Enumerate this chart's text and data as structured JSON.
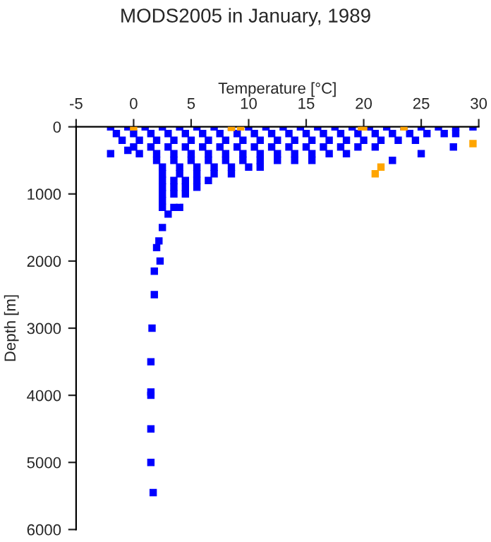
{
  "chart_data": {
    "type": "scatter",
    "title": "MODS2005 in January, 1989",
    "xlabel": "Temperature [°C]",
    "ylabel": "Depth [m]",
    "xlim": [
      -5,
      30
    ],
    "xticks": [
      -5,
      0,
      5,
      10,
      15,
      20,
      25,
      30
    ],
    "ylim": [
      6000,
      0
    ],
    "yticks": [
      0,
      1000,
      2000,
      3000,
      4000,
      5000,
      6000
    ],
    "grid": false,
    "legend": false,
    "marker": "square",
    "series": [
      {
        "color": "#0000ff",
        "x": [
          -2,
          -0.5,
          1,
          2.5,
          4,
          5.5,
          7,
          8.5,
          10,
          11.5,
          13,
          14.5,
          16,
          17.5,
          19,
          20.5,
          22,
          23.5,
          25,
          26.5,
          28,
          29.5,
          -1.5,
          0,
          1.5,
          3,
          4.5,
          6,
          7.5,
          9,
          10.5,
          12,
          13.5,
          15,
          16.5,
          18,
          19.5,
          21,
          22.5,
          24,
          25.5,
          27,
          28,
          -1,
          0.5,
          2,
          3.5,
          5,
          6.5,
          8,
          9.5,
          11,
          12.5,
          14,
          15.5,
          17,
          18.5,
          20,
          21.5,
          23,
          24.5,
          0,
          1.5,
          3,
          4.5,
          6,
          7.5,
          9,
          10.5,
          12,
          13.5,
          15,
          16.5,
          18,
          19.5,
          21,
          0.5,
          2,
          3.5,
          5,
          6.5,
          8,
          9.5,
          11,
          12.5,
          14,
          15.5,
          17,
          18.5,
          2,
          3.5,
          5,
          6.5,
          8,
          9.5,
          11,
          12.5,
          14,
          15.5,
          2.5,
          4,
          5.5,
          7,
          8.5,
          10,
          11,
          2.5,
          4,
          5.5,
          7,
          8.5,
          2.5,
          3.5,
          4.5,
          5.5,
          6.5,
          2.5,
          3.5,
          4.5,
          5.5,
          2.5,
          3.5,
          4.5,
          2.5,
          2.5,
          3.5,
          4,
          3,
          -2,
          -0.5,
          25,
          22.5,
          27.8,
          2.5,
          2.2,
          2.0,
          2.3,
          1.8,
          1.8,
          1.6,
          1.5,
          1.5,
          1.5,
          1.5,
          1.5,
          1.7
        ],
        "values": [
          0,
          0,
          0,
          0,
          0,
          0,
          0,
          0,
          0,
          0,
          0,
          0,
          0,
          0,
          0,
          0,
          0,
          0,
          0,
          0,
          0,
          0,
          100,
          100,
          100,
          100,
          100,
          100,
          100,
          100,
          100,
          100,
          100,
          100,
          100,
          100,
          100,
          100,
          100,
          100,
          100,
          100,
          100,
          200,
          200,
          200,
          200,
          200,
          200,
          200,
          200,
          200,
          200,
          200,
          200,
          200,
          200,
          200,
          200,
          200,
          200,
          300,
          300,
          300,
          300,
          300,
          300,
          300,
          300,
          300,
          300,
          300,
          300,
          300,
          300,
          300,
          400,
          400,
          400,
          400,
          400,
          400,
          400,
          400,
          400,
          400,
          400,
          400,
          400,
          500,
          500,
          500,
          500,
          500,
          500,
          500,
          500,
          500,
          500,
          600,
          600,
          600,
          600,
          600,
          600,
          600,
          700,
          700,
          700,
          700,
          700,
          800,
          800,
          800,
          800,
          800,
          900,
          900,
          900,
          900,
          1000,
          1000,
          1000,
          1100,
          1200,
          1200,
          1200,
          1300,
          400,
          350,
          400,
          500,
          300,
          1500,
          1700,
          1800,
          2000,
          2150,
          2500,
          3000,
          3500,
          3950,
          4000,
          4500,
          5000,
          5450
        ]
      },
      {
        "color": "#ffa500",
        "x": [
          0,
          8.5,
          9.3,
          19.8,
          20,
          23.5,
          29.5,
          21.5,
          21
        ],
        "values": [
          0,
          10,
          0,
          0,
          0,
          0,
          250,
          600,
          700
        ]
      }
    ]
  }
}
